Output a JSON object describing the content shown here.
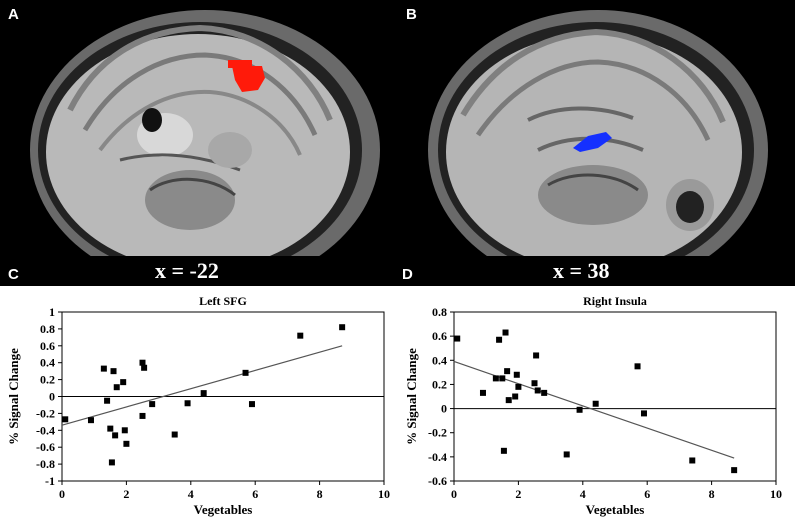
{
  "panels": {
    "a": "A",
    "b": "B",
    "c": "C",
    "d": "D"
  },
  "images": {
    "left_coord": "x = -22",
    "right_coord": "x = 38",
    "left_cluster_color": "#ff1a0a",
    "right_cluster_color": "#1530ff"
  },
  "chart_data": [
    {
      "type": "scatter",
      "title": "Left SFG",
      "xlabel": "Vegetables",
      "ylabel": "% Signal Change",
      "xlim": [
        0,
        10
      ],
      "ylim": [
        -1,
        1
      ],
      "xticks": [
        0,
        2,
        4,
        6,
        8,
        10
      ],
      "yticks": [
        -1,
        -0.8,
        -0.6,
        -0.4,
        -0.2,
        0,
        0.2,
        0.4,
        0.6,
        0.8,
        1
      ],
      "grid": false,
      "trendline": [
        [
          0,
          -0.34
        ],
        [
          8.7,
          0.6
        ]
      ],
      "points": [
        [
          0.1,
          -0.27
        ],
        [
          0.9,
          -0.28
        ],
        [
          1.3,
          0.33
        ],
        [
          1.4,
          -0.05
        ],
        [
          1.5,
          -0.38
        ],
        [
          1.55,
          -0.78
        ],
        [
          1.6,
          0.3
        ],
        [
          1.65,
          -0.46
        ],
        [
          1.7,
          0.11
        ],
        [
          1.9,
          0.17
        ],
        [
          1.95,
          -0.4
        ],
        [
          2.0,
          -0.56
        ],
        [
          2.5,
          0.4
        ],
        [
          2.55,
          0.34
        ],
        [
          2.5,
          -0.23
        ],
        [
          2.8,
          -0.09
        ],
        [
          3.5,
          -0.45
        ],
        [
          3.9,
          -0.08
        ],
        [
          4.4,
          0.04
        ],
        [
          5.7,
          0.28
        ],
        [
          5.9,
          -0.09
        ],
        [
          7.4,
          0.72
        ],
        [
          8.7,
          0.82
        ]
      ]
    },
    {
      "type": "scatter",
      "title": "Right Insula",
      "xlabel": "Vegetables",
      "ylabel": "% Signal Change",
      "xlim": [
        0,
        10
      ],
      "ylim": [
        -0.6,
        0.8
      ],
      "xticks": [
        0,
        2,
        4,
        6,
        8,
        10
      ],
      "yticks": [
        -0.6,
        -0.4,
        -0.2,
        0,
        0.2,
        0.4,
        0.6,
        0.8
      ],
      "grid": false,
      "trendline": [
        [
          0,
          0.39
        ],
        [
          8.7,
          -0.41
        ]
      ],
      "points": [
        [
          0.1,
          0.58
        ],
        [
          0.9,
          0.13
        ],
        [
          1.3,
          0.25
        ],
        [
          1.4,
          0.57
        ],
        [
          1.5,
          0.25
        ],
        [
          1.55,
          -0.35
        ],
        [
          1.6,
          0.63
        ],
        [
          1.65,
          0.31
        ],
        [
          1.7,
          0.07
        ],
        [
          1.9,
          0.1
        ],
        [
          1.95,
          0.28
        ],
        [
          2.0,
          0.18
        ],
        [
          2.5,
          0.21
        ],
        [
          2.55,
          0.44
        ],
        [
          2.6,
          0.15
        ],
        [
          2.8,
          0.13
        ],
        [
          3.5,
          -0.38
        ],
        [
          3.9,
          -0.01
        ],
        [
          4.4,
          0.04
        ],
        [
          5.7,
          0.35
        ],
        [
          5.9,
          -0.04
        ],
        [
          7.4,
          -0.43
        ],
        [
          8.7,
          -0.51
        ]
      ]
    }
  ]
}
